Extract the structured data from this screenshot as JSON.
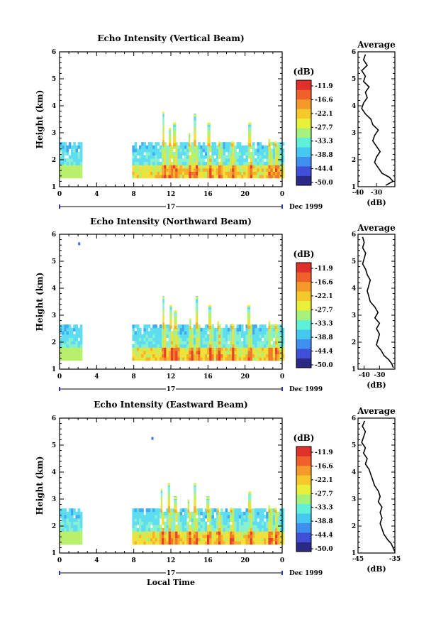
{
  "chart_data": [
    {
      "type": "heatmap",
      "title": "Echo Intensity (Vertical Beam)",
      "ylabel": "Height (km)",
      "xlabel": "",
      "xlim": [
        0,
        24
      ],
      "ylim": [
        1,
        6
      ],
      "x_ticks": [
        "0",
        "4",
        "8",
        "12",
        "16",
        "20",
        "0"
      ],
      "y_ticks": [
        "1",
        "2",
        "3",
        "4",
        "5",
        "6"
      ],
      "date_marker": "17",
      "date_label": "Dec 1999",
      "colorbar": {
        "label": "(dB)",
        "ticks": [
          "-11.9",
          "-16.6",
          "-22.1",
          "-27.7",
          "-33.3",
          "-38.8",
          "-44.4",
          "-50.0"
        ]
      },
      "plumes": [
        {
          "t": 11.2,
          "h": 3.7
        },
        {
          "t": 11.9,
          "h": 3.1
        },
        {
          "t": 12.4,
          "h": 3.3
        },
        {
          "t": 14.0,
          "h": 2.9
        },
        {
          "t": 14.6,
          "h": 3.6
        },
        {
          "t": 16.1,
          "h": 3.3
        },
        {
          "t": 17.2,
          "h": 2.6
        },
        {
          "t": 18.6,
          "h": 2.6
        },
        {
          "t": 20.5,
          "h": 3.3
        },
        {
          "t": 22.6,
          "h": 2.7
        },
        {
          "t": 23.3,
          "h": 2.6
        }
      ],
      "profile": {
        "title": "Average",
        "xlabel": "(dB)",
        "xlim": [
          -40,
          -20
        ],
        "x_ticks": [
          "-40",
          "-30"
        ],
        "y_ticks": [
          "1",
          "2",
          "3",
          "4",
          "5",
          "6"
        ],
        "height": [
          1.05,
          1.2,
          1.35,
          1.5,
          1.7,
          1.9,
          2.1,
          2.3,
          2.5,
          2.7,
          2.9,
          3.1,
          3.3,
          3.5,
          3.7,
          3.9,
          4.1,
          4.3,
          4.5,
          4.7,
          4.9,
          5.1,
          5.3,
          5.5,
          5.7,
          5.9
        ],
        "db": [
          -25,
          -21,
          -23,
          -27,
          -29,
          -31,
          -30,
          -28,
          -30,
          -32,
          -31,
          -29,
          -32,
          -33,
          -36,
          -38,
          -37,
          -35,
          -36,
          -34,
          -37,
          -36,
          -38,
          -35,
          -37,
          -36
        ]
      }
    },
    {
      "type": "heatmap",
      "title": "Echo Intensity (Northward Beam)",
      "ylabel": "Height (km)",
      "xlabel": "",
      "xlim": [
        0,
        24
      ],
      "ylim": [
        1,
        6
      ],
      "x_ticks": [
        "0",
        "4",
        "8",
        "12",
        "16",
        "20",
        "0"
      ],
      "y_ticks": [
        "1",
        "2",
        "3",
        "4",
        "5",
        "6"
      ],
      "date_marker": "17",
      "date_label": "Dec 1999",
      "colorbar": {
        "label": "(dB)",
        "ticks": [
          "-11.9",
          "-16.6",
          "-22.1",
          "-27.7",
          "-33.3",
          "-38.8",
          "-44.4",
          "-50.0"
        ]
      },
      "plumes": [
        {
          "t": 11.2,
          "h": 3.6
        },
        {
          "t": 12.0,
          "h": 3.3
        },
        {
          "t": 12.5,
          "h": 3.1
        },
        {
          "t": 14.1,
          "h": 2.8
        },
        {
          "t": 14.8,
          "h": 3.6
        },
        {
          "t": 16.2,
          "h": 3.3
        },
        {
          "t": 17.1,
          "h": 2.7
        },
        {
          "t": 18.6,
          "h": 2.6
        },
        {
          "t": 20.4,
          "h": 3.3
        },
        {
          "t": 22.6,
          "h": 2.7
        },
        {
          "t": 23.3,
          "h": 2.6
        }
      ],
      "profile": {
        "title": "Average",
        "xlabel": "(dB)",
        "xlim": [
          -44,
          -20
        ],
        "x_ticks": [
          "-40",
          "-30"
        ],
        "y_ticks": [
          "1",
          "2",
          "3",
          "4",
          "5",
          "6"
        ],
        "height": [
          1.05,
          1.2,
          1.35,
          1.5,
          1.7,
          1.9,
          2.1,
          2.3,
          2.5,
          2.7,
          2.9,
          3.1,
          3.3,
          3.5,
          3.7,
          3.9,
          4.1,
          4.3,
          4.5,
          4.7,
          4.9,
          5.1,
          5.3,
          5.5,
          5.7,
          5.9
        ],
        "db": [
          -21,
          -22,
          -24,
          -27,
          -29,
          -32,
          -31,
          -30,
          -32,
          -30,
          -33,
          -31,
          -33,
          -36,
          -37,
          -38,
          -37,
          -36,
          -38,
          -39,
          -41,
          -40,
          -39,
          -41,
          -40,
          -41
        ]
      }
    },
    {
      "type": "heatmap",
      "title": "Echo Intensity (Eastward Beam)",
      "ylabel": "Height (km)",
      "xlabel": "Local Time",
      "xlim": [
        0,
        24
      ],
      "ylim": [
        1,
        6
      ],
      "x_ticks": [
        "0",
        "4",
        "8",
        "12",
        "16",
        "20",
        "0"
      ],
      "y_ticks": [
        "1",
        "2",
        "3",
        "4",
        "5",
        "6"
      ],
      "date_marker": "17",
      "date_label": "Dec 1999",
      "colorbar": {
        "label": "(dB)",
        "ticks": [
          "-11.9",
          "-16.6",
          "-22.1",
          "-27.7",
          "-33.3",
          "-38.8",
          "-44.4",
          "-50.0"
        ]
      },
      "plumes": [
        {
          "t": 11.0,
          "h": 3.3
        },
        {
          "t": 11.8,
          "h": 3.5
        },
        {
          "t": 12.5,
          "h": 3.0
        },
        {
          "t": 13.9,
          "h": 2.9
        },
        {
          "t": 14.6,
          "h": 3.5
        },
        {
          "t": 16.0,
          "h": 3.0
        },
        {
          "t": 17.1,
          "h": 2.6
        },
        {
          "t": 18.5,
          "h": 2.6
        },
        {
          "t": 20.5,
          "h": 3.2
        },
        {
          "t": 22.6,
          "h": 2.7
        },
        {
          "t": 23.3,
          "h": 2.6
        }
      ],
      "profile": {
        "title": "Average",
        "xlabel": "(dB)",
        "xlim": [
          -45,
          -35
        ],
        "x_ticks": [
          "-45",
          "-35"
        ],
        "y_ticks": [
          "1",
          "2",
          "3",
          "4",
          "5",
          "6"
        ],
        "height": [
          1.05,
          1.2,
          1.35,
          1.5,
          1.7,
          1.9,
          2.1,
          2.3,
          2.5,
          2.7,
          2.9,
          3.1,
          3.3,
          3.5,
          3.7,
          3.9,
          4.1,
          4.3,
          4.5,
          4.7,
          4.9,
          5.1,
          5.3,
          5.5,
          5.7,
          5.9
        ],
        "db": [
          -35,
          -35.5,
          -36,
          -37,
          -38,
          -38.5,
          -39,
          -38.5,
          -39,
          -38.5,
          -39.5,
          -39,
          -39.5,
          -40.5,
          -41,
          -41.5,
          -42,
          -43,
          -42.5,
          -43.5,
          -43,
          -44,
          -43.5,
          -43,
          -43.8,
          -43.2
        ]
      }
    }
  ]
}
